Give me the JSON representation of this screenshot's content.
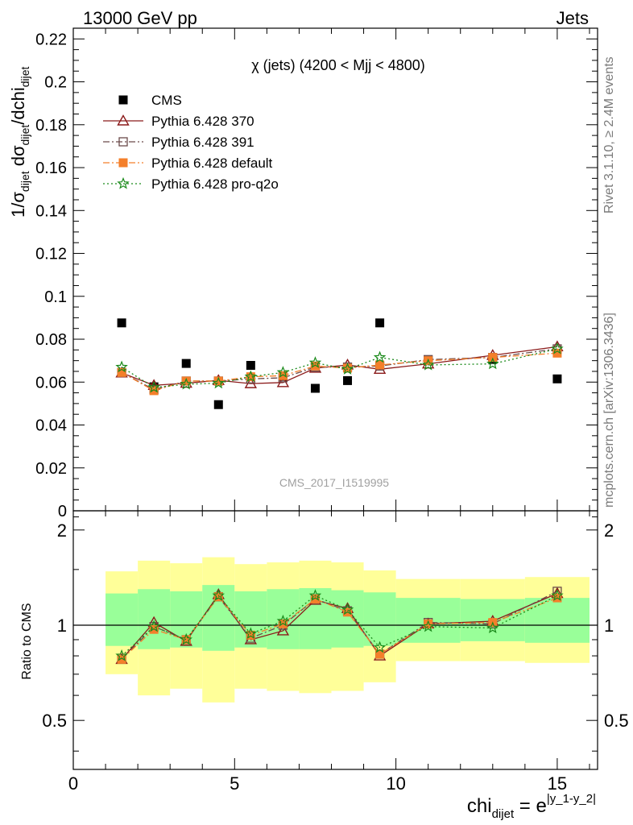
{
  "header": {
    "left": "13000 GeV pp",
    "right": "Jets"
  },
  "side_text": {
    "rivet": "Rivet 3.1.10, ≥ 2.4M events",
    "mcplots": "mcplots.cern.ch [arXiv:1306.3436]"
  },
  "chart_data": [
    {
      "type": "scatter",
      "title": "χ (jets) (4200 < Mjj < 4800)",
      "watermark": "CMS_2017_I1519995",
      "ylabel": {
        "main": "1/σ",
        "sub1": "dijet",
        "mid": " dσ",
        "sub2": "dijet",
        "tail": "/dchi",
        "sub3": "dijet"
      },
      "xlim": [
        0,
        16.25
      ],
      "ylim": [
        0,
        0.225
      ],
      "y_ticks": [
        0,
        0.02,
        0.04,
        0.06,
        0.08,
        0.1,
        0.12,
        0.14,
        0.16,
        0.18,
        0.2,
        0.22
      ],
      "y_tick_labels": [
        "0",
        "0.02",
        "0.04",
        "0.06",
        "0.08",
        "0.1",
        "0.12",
        "0.14",
        "0.16",
        "0.18",
        "0.2",
        "0.22"
      ],
      "legend_position": "top-left",
      "x": [
        1.5,
        2.5,
        3.5,
        4.5,
        5.5,
        6.5,
        7.5,
        8.5,
        9.5,
        11,
        13,
        15
      ],
      "series": [
        {
          "name": "CMS",
          "color": "#000000",
          "marker": "square-filled",
          "line": "none",
          "values": [
            0.0876,
            0.0578,
            0.0687,
            0.0495,
            0.0678,
            0.0627,
            0.0571,
            0.0607,
            0.0876,
            0.07,
            0.0706,
            0.0615
          ]
        },
        {
          "name": "Pythia 6.428 370",
          "color": "#8b1a1a",
          "marker": "triangle-open",
          "line": "solid",
          "values": [
            0.0643,
            0.0585,
            0.0595,
            0.0608,
            0.0593,
            0.0598,
            0.0665,
            0.068,
            0.066,
            0.0685,
            0.0725,
            0.0765
          ]
        },
        {
          "name": "Pythia 6.428 391",
          "color": "#6b4a4a",
          "marker": "square-open",
          "line": "dashdot",
          "values": [
            0.0645,
            0.0565,
            0.0605,
            0.0605,
            0.0615,
            0.062,
            0.067,
            0.067,
            0.0675,
            0.0705,
            0.0715,
            0.0755
          ]
        },
        {
          "name": "Pythia 6.428 default",
          "color": "#f47f2a",
          "marker": "square-filled",
          "line": "dashdot",
          "values": [
            0.0645,
            0.056,
            0.0605,
            0.0605,
            0.0625,
            0.063,
            0.0675,
            0.0665,
            0.068,
            0.07,
            0.0715,
            0.0735
          ]
        },
        {
          "name": "Pythia 6.428 pro-q2o",
          "color": "#1a8a1a",
          "marker": "star-open",
          "line": "dotted",
          "values": [
            0.067,
            0.0575,
            0.059,
            0.0595,
            0.0625,
            0.0645,
            0.069,
            0.066,
            0.0715,
            0.068,
            0.0685,
            0.0755
          ]
        }
      ]
    },
    {
      "type": "scatter",
      "xlabel": {
        "main": "chi",
        "sub": "dijet",
        "eq": " = e",
        "sup": "|y_1-y_2|"
      },
      "ylabel": "Ratio to CMS",
      "xlim": [
        0,
        16.25
      ],
      "ylim": [
        0.35,
        2.3
      ],
      "log_y": true,
      "x_ticks": [
        0,
        5,
        10,
        15
      ],
      "x_tick_labels": [
        "0",
        "5",
        "10",
        "15"
      ],
      "y_ticks": [
        0.5,
        1,
        2
      ],
      "y_tick_labels": [
        "0.5",
        "1",
        "2"
      ],
      "reference_line": 1,
      "bins": [
        [
          1,
          2
        ],
        [
          2,
          3
        ],
        [
          3,
          4
        ],
        [
          4,
          5
        ],
        [
          5,
          6
        ],
        [
          6,
          7
        ],
        [
          7,
          8
        ],
        [
          8,
          9
        ],
        [
          9,
          10
        ],
        [
          10,
          12
        ],
        [
          12,
          14
        ],
        [
          14,
          16
        ]
      ],
      "band_inner": [
        [
          0.86,
          1.26
        ],
        [
          0.84,
          1.3
        ],
        [
          0.85,
          1.28
        ],
        [
          0.83,
          1.34
        ],
        [
          0.85,
          1.28
        ],
        [
          0.84,
          1.3
        ],
        [
          0.84,
          1.31
        ],
        [
          0.85,
          1.29
        ],
        [
          0.86,
          1.27
        ],
        [
          0.88,
          1.22
        ],
        [
          0.89,
          1.21
        ],
        [
          0.88,
          1.22
        ]
      ],
      "band_outer": [
        [
          0.7,
          1.48
        ],
        [
          0.6,
          1.6
        ],
        [
          0.63,
          1.57
        ],
        [
          0.57,
          1.64
        ],
        [
          0.63,
          1.56
        ],
        [
          0.62,
          1.58
        ],
        [
          0.61,
          1.6
        ],
        [
          0.62,
          1.58
        ],
        [
          0.66,
          1.49
        ],
        [
          0.77,
          1.4
        ],
        [
          0.77,
          1.4
        ],
        [
          0.76,
          1.42
        ]
      ],
      "x": [
        1.5,
        2.5,
        3.5,
        4.5,
        5.5,
        6.5,
        7.5,
        8.5,
        9.5,
        11,
        13,
        15
      ],
      "series": [
        {
          "name": "Pythia 6.428 370",
          "color": "#8b1a1a",
          "marker": "triangle-open",
          "line": "solid",
          "values": [
            0.78,
            1.02,
            0.89,
            1.25,
            0.9,
            0.96,
            1.2,
            1.13,
            0.8,
            1.01,
            1.03,
            1.26
          ]
        },
        {
          "name": "Pythia 6.428 391",
          "color": "#6b4a4a",
          "marker": "square-open",
          "line": "dashdot",
          "values": [
            0.78,
            0.99,
            0.9,
            1.23,
            0.91,
            1.0,
            1.21,
            1.11,
            0.81,
            1.02,
            1.01,
            1.28
          ]
        },
        {
          "name": "Pythia 6.428 default",
          "color": "#f47f2a",
          "marker": "square-filled",
          "line": "dashdot",
          "values": [
            0.78,
            0.97,
            0.9,
            1.23,
            0.93,
            1.01,
            1.21,
            1.1,
            0.81,
            1.01,
            1.02,
            1.22
          ]
        },
        {
          "name": "Pythia 6.428 pro-q2o",
          "color": "#1a8a1a",
          "marker": "star-open",
          "line": "dotted",
          "values": [
            0.8,
            0.99,
            0.9,
            1.24,
            0.94,
            1.03,
            1.24,
            1.12,
            0.85,
            0.99,
            0.98,
            1.24
          ]
        }
      ]
    }
  ]
}
